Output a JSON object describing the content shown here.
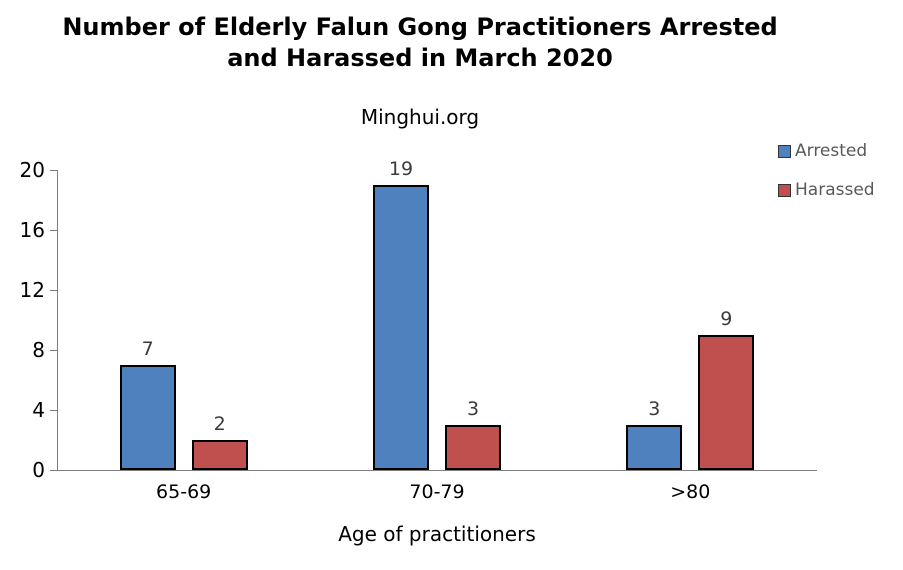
{
  "title": {
    "line1": "Number of Elderly Falun Gong Practitioners Arrested",
    "line2": "and Harassed in March 2020"
  },
  "subtitle": "Minghui.org",
  "chart_data": {
    "type": "bar",
    "title": "Number of Elderly Falun Gong Practitioners Arrested and Harassed in March 2020",
    "subtitle": "Minghui.org",
    "categories": [
      "65-69",
      "70-79",
      ">80"
    ],
    "series": [
      {
        "name": "Arrested",
        "color": "#4E81BD",
        "values": [
          7,
          19,
          3
        ]
      },
      {
        "name": "Harassed",
        "color": "#C0504D",
        "values": [
          2,
          3,
          9
        ]
      }
    ],
    "xlabel": "Age of practitioners",
    "ylabel": "",
    "ylim": [
      0,
      20
    ],
    "yticks": [
      0,
      4,
      8,
      12,
      16,
      20
    ],
    "grid": false,
    "data_labels": true,
    "legend_position": "top-right",
    "axis_color": "#7f7f7f",
    "bar_border_color": "#000000"
  }
}
